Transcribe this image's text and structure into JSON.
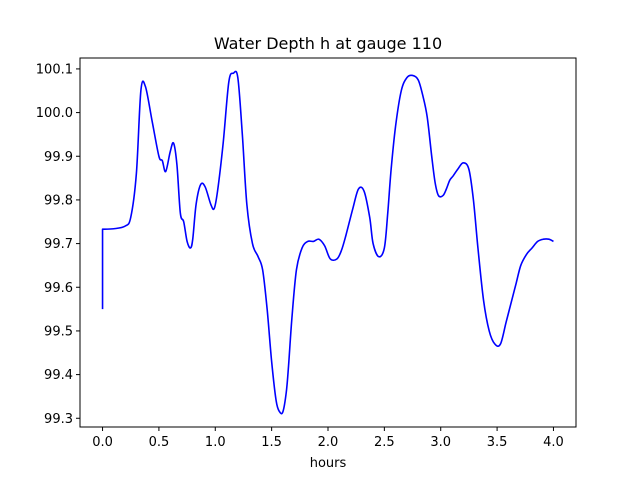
{
  "chart_data": {
    "type": "line",
    "title": "Water Depth h at gauge 110",
    "xlabel": "hours",
    "ylabel": "",
    "xlim": [
      -0.2,
      4.2
    ],
    "ylim": [
      99.28,
      100.125
    ],
    "x_ticks": [
      0.0,
      0.5,
      1.0,
      1.5,
      2.0,
      2.5,
      3.0,
      3.5,
      4.0
    ],
    "x_tick_labels": [
      "0.0",
      "0.5",
      "1.0",
      "1.5",
      "2.0",
      "2.5",
      "3.0",
      "3.5",
      "4.0"
    ],
    "y_ticks": [
      99.3,
      99.4,
      99.5,
      99.6,
      99.7,
      99.8,
      99.9,
      100.0,
      100.1
    ],
    "y_tick_labels": [
      "99.3",
      "99.4",
      "99.5",
      "99.6",
      "99.7",
      "99.8",
      "99.9",
      "100.0",
      "100.1"
    ],
    "grid": false,
    "legend": "none",
    "series": [
      {
        "color": "#0000ff",
        "x": [
          0.0,
          0.0,
          0.1,
          0.2,
          0.25,
          0.3,
          0.34,
          0.38,
          0.44,
          0.5,
          0.53,
          0.56,
          0.6,
          0.63,
          0.66,
          0.69,
          0.72,
          0.75,
          0.78,
          0.8,
          0.83,
          0.87,
          0.91,
          0.96,
          0.99,
          1.02,
          1.07,
          1.12,
          1.16,
          1.2,
          1.24,
          1.28,
          1.33,
          1.38,
          1.42,
          1.46,
          1.5,
          1.54,
          1.57,
          1.6,
          1.63,
          1.65,
          1.68,
          1.72,
          1.77,
          1.82,
          1.87,
          1.92,
          1.97,
          2.02,
          2.08,
          2.12,
          2.16,
          2.22,
          2.27,
          2.32,
          2.37,
          2.4,
          2.45,
          2.5,
          2.53,
          2.56,
          2.6,
          2.65,
          2.7,
          2.75,
          2.8,
          2.84,
          2.88,
          2.92,
          2.95,
          2.98,
          3.02,
          3.05,
          3.08,
          3.11,
          3.15,
          3.2,
          3.25,
          3.29,
          3.33,
          3.38,
          3.43,
          3.48,
          3.53,
          3.58,
          3.63,
          3.67,
          3.71,
          3.76,
          3.81,
          3.86,
          3.91,
          3.96,
          4.0
        ],
        "y": [
          99.55,
          99.733,
          99.734,
          99.74,
          99.76,
          99.86,
          100.05,
          100.06,
          99.98,
          99.9,
          99.89,
          99.865,
          99.91,
          99.93,
          99.88,
          99.77,
          99.75,
          99.705,
          99.69,
          99.71,
          99.79,
          99.835,
          99.83,
          99.79,
          99.78,
          99.82,
          99.93,
          100.07,
          100.09,
          100.08,
          99.95,
          99.79,
          99.7,
          99.67,
          99.64,
          99.55,
          99.43,
          99.34,
          99.315,
          99.315,
          99.36,
          99.42,
          99.53,
          99.64,
          99.69,
          99.705,
          99.705,
          99.71,
          99.695,
          99.665,
          99.665,
          99.685,
          99.72,
          99.78,
          99.825,
          99.82,
          99.76,
          99.7,
          99.67,
          99.69,
          99.77,
          99.87,
          99.97,
          100.05,
          100.08,
          100.085,
          100.075,
          100.04,
          99.99,
          99.9,
          99.84,
          99.81,
          99.81,
          99.825,
          99.845,
          99.855,
          99.87,
          99.885,
          99.87,
          99.8,
          99.69,
          99.57,
          99.5,
          99.47,
          99.47,
          99.52,
          99.57,
          99.61,
          99.65,
          99.675,
          99.69,
          99.705,
          99.71,
          99.71,
          99.705
        ]
      }
    ]
  }
}
